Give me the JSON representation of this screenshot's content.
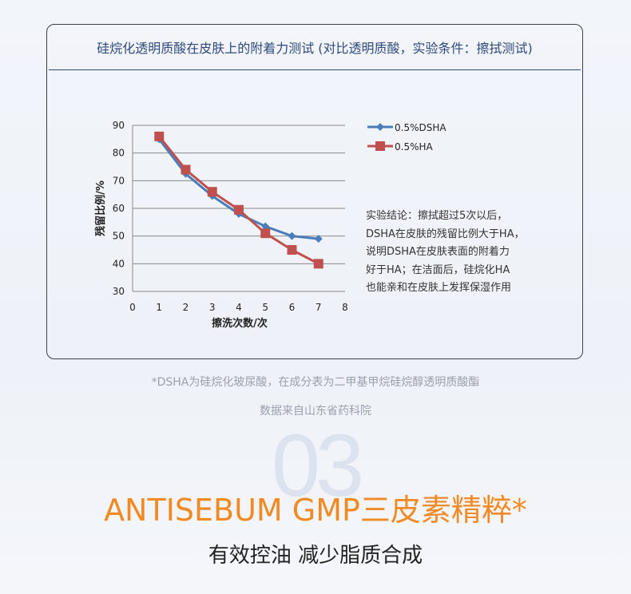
{
  "card_title": "硅烷化透明质酸在皮肤上的附着力测试 (对比透明质酸，实验条件：擦拭测试)",
  "conclusion": "实验结论：擦拭超过5次以后，\nDSHA在皮肤的残留比例大于HA，\n说明DSHA在皮肤表面的附着力\n好于HA；在洁面后，硅烷化HA\n也能亲和在皮肤上发挥保湿作用",
  "footnote": "*DSHA为硅烷化玻尿酸，在成分表为二甲基甲烷硅烷醇透明质酸酯",
  "source": "数据来自山东省药科院",
  "section_number": "03",
  "headline": "ANTISEBUM GMP三皮素精粹*",
  "subheadline": "有效控油 减少脂质合成",
  "chart_data": {
    "type": "line",
    "xlabel": "擦洗次数/次",
    "ylabel": "残留比例/%",
    "xlim": [
      0,
      8
    ],
    "ylim": [
      30,
      90
    ],
    "xticks": [
      "0",
      "1",
      "2",
      "3",
      "4",
      "5",
      "6",
      "7",
      "8"
    ],
    "yticks": [
      "30",
      "40",
      "50",
      "60",
      "70",
      "80",
      "90"
    ],
    "grid": "horizontal",
    "legend": "right",
    "x": [
      1,
      2,
      3,
      4,
      5,
      6,
      7
    ],
    "series": [
      {
        "name": "0.5%DSHA",
        "color": "#4a7ebb",
        "marker": "diamond",
        "values": [
          85,
          72.5,
          64.5,
          58,
          53.5,
          50,
          49
        ]
      },
      {
        "name": "0.5%HA",
        "color": "#c0504d",
        "marker": "square",
        "values": [
          86,
          74,
          66,
          59.5,
          51,
          45,
          40
        ]
      }
    ]
  }
}
